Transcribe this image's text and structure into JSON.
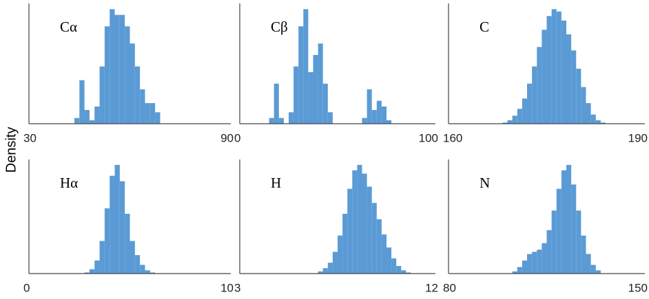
{
  "ylabel": "Density",
  "chart_data": [
    {
      "type": "histogram",
      "label": "Cα",
      "color": "#5b9bd5",
      "xlim": [
        30,
        90
      ],
      "xticks": [
        30,
        90
      ],
      "ylim": [
        0,
        1.05
      ],
      "bins": [
        30,
        31.5,
        33,
        34.5,
        36,
        37.5,
        39,
        40.5,
        42,
        43.5,
        45,
        46.5,
        48,
        49.5,
        51,
        52.5,
        54,
        55.5,
        57,
        58.5,
        60,
        61.5,
        63,
        64.5,
        66,
        67.5,
        69,
        70.5,
        72,
        73.5,
        75,
        76.5,
        78,
        79.5,
        81,
        82.5,
        84,
        85.5,
        87,
        88.5,
        90
      ],
      "values": [
        0,
        0,
        0,
        0,
        0,
        0,
        0,
        0,
        0,
        0.05,
        0.38,
        0.12,
        0.03,
        0.15,
        0.5,
        0.85,
        1.0,
        0.95,
        0.95,
        0.85,
        0.7,
        0.5,
        0.3,
        0.18,
        0.18,
        0.1,
        0,
        0,
        0,
        0,
        0,
        0,
        0,
        0,
        0,
        0,
        0,
        0,
        0,
        0
      ]
    },
    {
      "type": "histogram",
      "label": "Cβ",
      "color": "#5b9bd5",
      "xlim": [
        0,
        100
      ],
      "xticks": [
        0,
        100
      ],
      "ylim": [
        0,
        1.05
      ],
      "bins": [
        0,
        2.5,
        5,
        7.5,
        10,
        12.5,
        15,
        17.5,
        20,
        22.5,
        25,
        27.5,
        30,
        32.5,
        35,
        37.5,
        40,
        42.5,
        45,
        47.5,
        50,
        52.5,
        55,
        57.5,
        60,
        62.5,
        65,
        67.5,
        70,
        72.5,
        75,
        77.5,
        80,
        82.5,
        85,
        87.5,
        90,
        92.5,
        95,
        97.5,
        100
      ],
      "values": [
        0,
        0,
        0,
        0,
        0,
        0,
        0.05,
        0.35,
        0.05,
        0,
        0.1,
        0.5,
        0.85,
        1.0,
        0.45,
        0.6,
        0.7,
        0.35,
        0.1,
        0,
        0,
        0,
        0,
        0,
        0,
        0.05,
        0.3,
        0.12,
        0.2,
        0.15,
        0.03,
        0,
        0,
        0,
        0,
        0,
        0,
        0,
        0,
        0
      ]
    },
    {
      "type": "histogram",
      "label": "C",
      "color": "#5b9bd5",
      "xlim": [
        160,
        190
      ],
      "xticks": [
        160,
        190
      ],
      "ylim": [
        0,
        1.05
      ],
      "bins": [
        160,
        160.75,
        161.5,
        162.25,
        163,
        163.75,
        164.5,
        165.25,
        166,
        166.75,
        167.5,
        168.25,
        169,
        169.75,
        170.5,
        171.25,
        172,
        172.75,
        173.5,
        174.25,
        175,
        175.75,
        176.5,
        177.25,
        178,
        178.75,
        179.5,
        180.25,
        181,
        181.75,
        182.5,
        183.25,
        184,
        184.75,
        185.5,
        186.25,
        187,
        187.75,
        188.5,
        189.25,
        190
      ],
      "values": [
        0,
        0,
        0,
        0,
        0,
        0,
        0,
        0,
        0,
        0,
        0,
        0.01,
        0.03,
        0.07,
        0.13,
        0.22,
        0.35,
        0.5,
        0.67,
        0.82,
        0.94,
        1.0,
        0.98,
        0.9,
        0.78,
        0.64,
        0.48,
        0.32,
        0.18,
        0.08,
        0.03,
        0.01,
        0,
        0,
        0,
        0,
        0,
        0,
        0,
        0
      ]
    },
    {
      "type": "histogram",
      "label": "Hα",
      "color": "#5b9bd5",
      "xlim": [
        0,
        10
      ],
      "xticks": [
        0,
        10
      ],
      "ylim": [
        0,
        1.05
      ],
      "bins": [
        0,
        0.25,
        0.5,
        0.75,
        1,
        1.25,
        1.5,
        1.75,
        2,
        2.25,
        2.5,
        2.75,
        3,
        3.25,
        3.5,
        3.75,
        4,
        4.25,
        4.5,
        4.75,
        5,
        5.25,
        5.5,
        5.75,
        6,
        6.25,
        6.5,
        6.75,
        7,
        7.25,
        7.5,
        7.75,
        8,
        8.25,
        8.5,
        8.75,
        9,
        9.25,
        9.5,
        9.75,
        10
      ],
      "values": [
        0,
        0,
        0,
        0,
        0,
        0,
        0,
        0,
        0,
        0,
        0,
        0.01,
        0.04,
        0.12,
        0.3,
        0.6,
        0.9,
        1.0,
        0.85,
        0.55,
        0.3,
        0.17,
        0.08,
        0.03,
        0.01,
        0,
        0,
        0,
        0,
        0,
        0,
        0,
        0,
        0,
        0,
        0,
        0,
        0,
        0,
        0
      ]
    },
    {
      "type": "histogram",
      "label": "H",
      "color": "#5b9bd5",
      "xlim": [
        3,
        12
      ],
      "xticks": [
        3,
        12
      ],
      "ylim": [
        0,
        1.05
      ],
      "bins": [
        3,
        3.225,
        3.45,
        3.675,
        3.9,
        4.125,
        4.35,
        4.575,
        4.8,
        5.025,
        5.25,
        5.475,
        5.7,
        5.925,
        6.15,
        6.375,
        6.6,
        6.825,
        7.05,
        7.275,
        7.5,
        7.725,
        7.95,
        8.175,
        8.4,
        8.625,
        8.85,
        9.075,
        9.3,
        9.525,
        9.75,
        9.975,
        10.2,
        10.425,
        10.65,
        10.875,
        11.1,
        11.325,
        11.55,
        11.775,
        12
      ],
      "values": [
        0,
        0,
        0,
        0,
        0,
        0,
        0,
        0,
        0,
        0,
        0,
        0,
        0,
        0,
        0,
        0,
        0.02,
        0.05,
        0.1,
        0.2,
        0.35,
        0.55,
        0.78,
        0.95,
        1.0,
        0.92,
        0.8,
        0.65,
        0.5,
        0.36,
        0.24,
        0.14,
        0.07,
        0.03,
        0.01,
        0,
        0,
        0,
        0,
        0
      ]
    },
    {
      "type": "histogram",
      "label": "N",
      "color": "#5b9bd5",
      "xlim": [
        80,
        150
      ],
      "xticks": [
        80,
        150
      ],
      "ylim": [
        0,
        1.05
      ],
      "bins": [
        80,
        81.75,
        83.5,
        85.25,
        87,
        88.75,
        90.5,
        92.25,
        94,
        95.75,
        97.5,
        99.25,
        101,
        102.75,
        104.5,
        106.25,
        108,
        109.75,
        111.5,
        113.25,
        115,
        116.75,
        118.5,
        120.25,
        122,
        123.75,
        125.5,
        127.25,
        129,
        130.75,
        132.5,
        134.25,
        136,
        137.75,
        139.5,
        141.25,
        143,
        144.75,
        146.5,
        148.25,
        150
      ],
      "values": [
        0,
        0,
        0,
        0,
        0,
        0,
        0,
        0,
        0,
        0,
        0,
        0,
        0,
        0.02,
        0.06,
        0.12,
        0.18,
        0.2,
        0.22,
        0.28,
        0.4,
        0.58,
        0.78,
        0.95,
        1.0,
        0.82,
        0.58,
        0.35,
        0.18,
        0.08,
        0.03,
        0,
        0,
        0,
        0,
        0,
        0,
        0,
        0,
        0
      ]
    }
  ]
}
